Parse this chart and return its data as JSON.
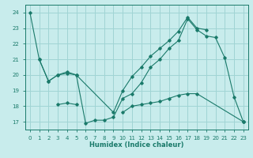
{
  "title": "",
  "xlabel": "Humidex (Indice chaleur)",
  "bg_color": "#c8ecec",
  "grid_color": "#a0d4d4",
  "line_color": "#1a7a6a",
  "xlim": [
    -0.5,
    23.5
  ],
  "ylim": [
    16.5,
    24.5
  ],
  "yticks": [
    17,
    18,
    19,
    20,
    21,
    22,
    23,
    24
  ],
  "xticks": [
    0,
    1,
    2,
    3,
    4,
    5,
    6,
    7,
    8,
    9,
    10,
    11,
    12,
    13,
    14,
    15,
    16,
    17,
    18,
    19,
    20,
    21,
    22,
    23
  ],
  "series1_x": [
    0,
    1,
    2,
    3,
    4,
    5,
    6,
    7,
    8,
    9,
    10,
    11,
    12,
    13,
    14,
    15,
    16,
    17,
    18,
    19,
    20,
    21,
    22,
    23
  ],
  "series1_y": [
    24,
    21,
    19.6,
    20.0,
    20.2,
    20.0,
    16.9,
    17.1,
    17.1,
    17.3,
    18.5,
    18.8,
    19.5,
    20.5,
    21.0,
    21.7,
    22.2,
    23.6,
    22.9,
    22.5,
    22.4,
    21.1,
    18.6,
    17.0
  ],
  "series2_x": [
    3,
    4,
    5,
    10,
    11,
    12,
    13,
    14,
    15,
    16,
    17,
    18,
    23
  ],
  "series2_y": [
    18.1,
    18.2,
    18.1,
    17.6,
    18.0,
    18.1,
    18.2,
    18.3,
    18.5,
    18.7,
    18.8,
    18.8,
    17.0
  ],
  "series2_segments": [
    [
      0,
      3
    ],
    [
      3,
      13
    ]
  ],
  "series3_x": [
    1,
    2,
    3,
    4,
    5,
    9,
    10,
    11,
    12,
    13,
    14,
    15,
    16,
    17,
    18,
    19
  ],
  "series3_y": [
    21,
    19.6,
    20.0,
    20.1,
    20.0,
    17.6,
    19.0,
    19.9,
    20.5,
    21.2,
    21.7,
    22.2,
    22.8,
    23.7,
    23.0,
    22.9
  ]
}
